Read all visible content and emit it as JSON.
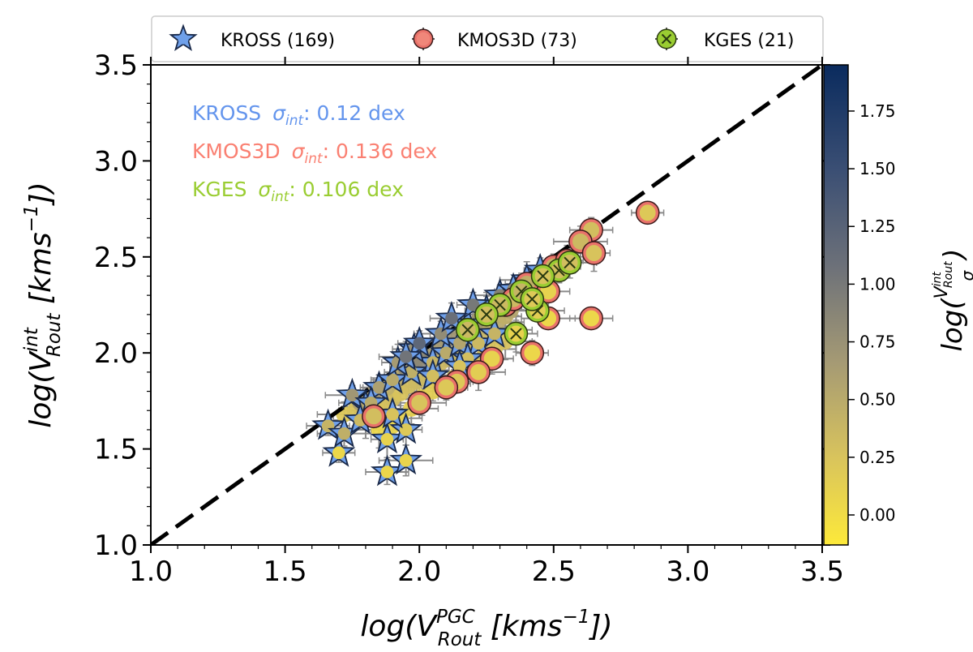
{
  "chart_data": {
    "type": "scatter",
    "xlabel": "log(V",
    "xlabel_sup": "PGC",
    "xlabel_sub": "Rout",
    "xlabel_units": " [kms",
    "xlabel_exp": "−1",
    "xlabel_close": "])",
    "ylabel": "log(V",
    "ylabel_sup": "int",
    "ylabel_sub": "Rout",
    "ylabel_units": " [kms",
    "ylabel_exp": "−1",
    "ylabel_close": "])",
    "xlim": [
      1.0,
      3.5
    ],
    "ylim": [
      1.0,
      3.5
    ],
    "x_ticks": [
      "1.0",
      "1.5",
      "2.0",
      "2.5",
      "3.0",
      "3.5"
    ],
    "y_ticks": [
      "1.0",
      "1.5",
      "2.0",
      "2.5",
      "3.0",
      "3.5"
    ],
    "one_to_one_line": [
      [
        1.0,
        1.0
      ],
      [
        3.5,
        3.5
      ]
    ],
    "legend": [
      {
        "label": "KROSS (169)",
        "marker": "star",
        "color": "#6fa0ea"
      },
      {
        "label": "KMOS3D (73)",
        "marker": "circle",
        "color": "#f0877a"
      },
      {
        "label": "KGES (21)",
        "marker": "x-circle",
        "color": "#9acd32"
      }
    ],
    "annotations": [
      {
        "survey": "KROSS",
        "sigma": "σ",
        "sub": "int",
        "value": ": 0.12 dex",
        "color": "#6495ed"
      },
      {
        "survey": "KMOS3D",
        "sigma": "σ",
        "sub": "int",
        "value": ": 0.136 dex",
        "color": "#fa8072"
      },
      {
        "survey": "KGES",
        "sigma": "σ",
        "sub": "int",
        "value": ": 0.106 dex",
        "color": "#9acd32"
      }
    ],
    "colorbar": {
      "label": "log(",
      "label_frac_num": "V",
      "label_frac_sup": "int",
      "label_frac_sub": "Rout",
      "label_frac_den": "σ",
      "label_close": ")",
      "range": [
        -0.13,
        1.95
      ],
      "ticks": [
        "0.00",
        "0.25",
        "0.50",
        "0.75",
        "1.00",
        "1.25",
        "1.50",
        "1.75"
      ],
      "tick_values": [
        0.0,
        0.25,
        0.5,
        0.75,
        1.0,
        1.25,
        1.5,
        1.75
      ],
      "colors": [
        "#fde93a",
        "#c9b66a",
        "#8d8a7b",
        "#5a6478",
        "#1c3a70",
        "#0c2a5c"
      ]
    },
    "series": [
      {
        "name": "KROSS",
        "marker": "star",
        "points": [
          [
            1.7,
            1.48,
            0.05
          ],
          [
            1.88,
            1.38,
            0.06
          ],
          [
            1.95,
            1.44,
            0.08
          ],
          [
            1.88,
            1.55,
            0.1
          ],
          [
            1.66,
            1.62,
            0.4
          ],
          [
            1.72,
            1.58,
            0.45
          ],
          [
            1.95,
            1.6,
            0.2
          ],
          [
            1.8,
            1.72,
            0.55
          ],
          [
            1.75,
            1.78,
            0.7
          ],
          [
            1.85,
            1.82,
            0.6
          ],
          [
            1.9,
            1.86,
            0.5
          ],
          [
            1.97,
            1.9,
            0.45
          ],
          [
            2.05,
            1.95,
            0.4
          ],
          [
            2.1,
            2.0,
            0.5
          ],
          [
            2.15,
            2.05,
            0.55
          ],
          [
            1.92,
            1.95,
            0.65
          ],
          [
            1.98,
            2.02,
            0.75
          ],
          [
            2.08,
            2.1,
            0.8
          ],
          [
            2.18,
            2.15,
            0.7
          ],
          [
            2.25,
            2.22,
            0.6
          ],
          [
            2.3,
            2.3,
            0.9
          ],
          [
            2.2,
            2.25,
            1.0
          ],
          [
            2.12,
            2.18,
            1.1
          ],
          [
            2.4,
            2.38,
            0.95
          ],
          [
            2.35,
            2.33,
            0.85
          ],
          [
            2.0,
            2.05,
            1.2
          ],
          [
            1.95,
            1.98,
            1.05
          ],
          [
            2.22,
            2.05,
            0.35
          ],
          [
            2.28,
            2.1,
            0.4
          ],
          [
            2.18,
            1.97,
            0.3
          ],
          [
            2.05,
            1.88,
            0.3
          ],
          [
            1.82,
            1.74,
            0.5
          ],
          [
            1.78,
            1.65,
            0.35
          ],
          [
            2.45,
            2.43,
            1.0
          ],
          [
            2.15,
            1.93,
            0.25
          ],
          [
            1.9,
            1.68,
            0.25
          ]
        ]
      },
      {
        "name": "KMOS3D",
        "marker": "circle",
        "points": [
          [
            2.85,
            2.73,
            0.2
          ],
          [
            2.64,
            2.64,
            0.3
          ],
          [
            2.6,
            2.58,
            0.35
          ],
          [
            2.65,
            2.52,
            0.25
          ],
          [
            2.64,
            2.18,
            0.05
          ],
          [
            2.5,
            2.45,
            0.4
          ],
          [
            2.55,
            2.48,
            0.35
          ],
          [
            2.48,
            2.32,
            0.1
          ],
          [
            2.48,
            2.18,
            0.05
          ],
          [
            2.42,
            2.0,
            0.05
          ],
          [
            2.27,
            1.97,
            0.1
          ],
          [
            2.22,
            1.9,
            0.15
          ],
          [
            2.14,
            1.85,
            0.2
          ],
          [
            2.1,
            1.82,
            0.2
          ],
          [
            2.0,
            1.74,
            0.25
          ],
          [
            1.83,
            1.67,
            0.3
          ],
          [
            2.4,
            2.36,
            0.45
          ],
          [
            2.32,
            2.25,
            0.3
          ],
          [
            2.35,
            2.28,
            0.35
          ]
        ]
      },
      {
        "name": "KGES",
        "marker": "x-circle",
        "points": [
          [
            2.36,
            2.1,
            0.1
          ],
          [
            2.44,
            2.22,
            0.15
          ],
          [
            2.52,
            2.43,
            0.3
          ],
          [
            2.46,
            2.4,
            0.25
          ],
          [
            2.38,
            2.32,
            0.4
          ],
          [
            2.42,
            2.28,
            0.2
          ],
          [
            2.3,
            2.25,
            0.35
          ],
          [
            2.56,
            2.47,
            0.3
          ],
          [
            2.25,
            2.2,
            0.3
          ],
          [
            2.18,
            2.12,
            0.35
          ]
        ]
      }
    ],
    "extra_scatter": [
      [
        1.72,
        1.68,
        0.2
      ],
      [
        1.76,
        1.7,
        0.25
      ],
      [
        1.8,
        1.65,
        0.1
      ],
      [
        1.84,
        1.7,
        0.2
      ],
      [
        1.87,
        1.73,
        0.25
      ],
      [
        1.9,
        1.76,
        0.3
      ],
      [
        1.93,
        1.79,
        0.25
      ],
      [
        1.96,
        1.83,
        0.3
      ],
      [
        1.99,
        1.85,
        0.35
      ],
      [
        2.02,
        1.88,
        0.35
      ],
      [
        2.05,
        1.91,
        0.3
      ],
      [
        2.08,
        1.95,
        0.35
      ],
      [
        2.11,
        1.97,
        0.4
      ],
      [
        2.14,
        2.0,
        0.35
      ],
      [
        2.17,
        2.03,
        0.4
      ],
      [
        2.2,
        2.06,
        0.45
      ],
      [
        2.23,
        2.1,
        0.4
      ],
      [
        2.26,
        2.13,
        0.45
      ],
      [
        2.29,
        2.16,
        0.5
      ],
      [
        2.32,
        2.19,
        0.45
      ],
      [
        2.34,
        2.22,
        0.55
      ],
      [
        1.88,
        1.82,
        0.45
      ],
      [
        1.93,
        1.88,
        0.5
      ],
      [
        1.98,
        1.93,
        0.55
      ],
      [
        2.03,
        1.98,
        0.6
      ],
      [
        2.07,
        2.03,
        0.65
      ],
      [
        2.12,
        2.08,
        0.7
      ],
      [
        2.17,
        2.13,
        0.65
      ],
      [
        2.22,
        2.17,
        0.7
      ],
      [
        2.27,
        2.22,
        0.75
      ],
      [
        1.85,
        1.6,
        0.05
      ],
      [
        1.9,
        1.62,
        0.08
      ],
      [
        1.93,
        1.66,
        0.1
      ],
      [
        1.97,
        1.71,
        0.12
      ],
      [
        2.01,
        1.77,
        0.15
      ],
      [
        2.05,
        1.8,
        0.15
      ],
      [
        2.09,
        1.84,
        0.18
      ],
      [
        2.13,
        1.87,
        0.2
      ],
      [
        2.16,
        1.9,
        0.22
      ],
      [
        2.2,
        1.94,
        0.22
      ],
      [
        2.24,
        1.98,
        0.25
      ],
      [
        2.28,
        2.02,
        0.25
      ],
      [
        2.32,
        2.06,
        0.28
      ],
      [
        2.36,
        2.12,
        0.3
      ],
      [
        1.78,
        1.74,
        0.6
      ],
      [
        1.83,
        1.79,
        0.65
      ],
      [
        1.95,
        1.92,
        0.8
      ],
      [
        2.0,
        1.97,
        0.85
      ]
    ]
  }
}
